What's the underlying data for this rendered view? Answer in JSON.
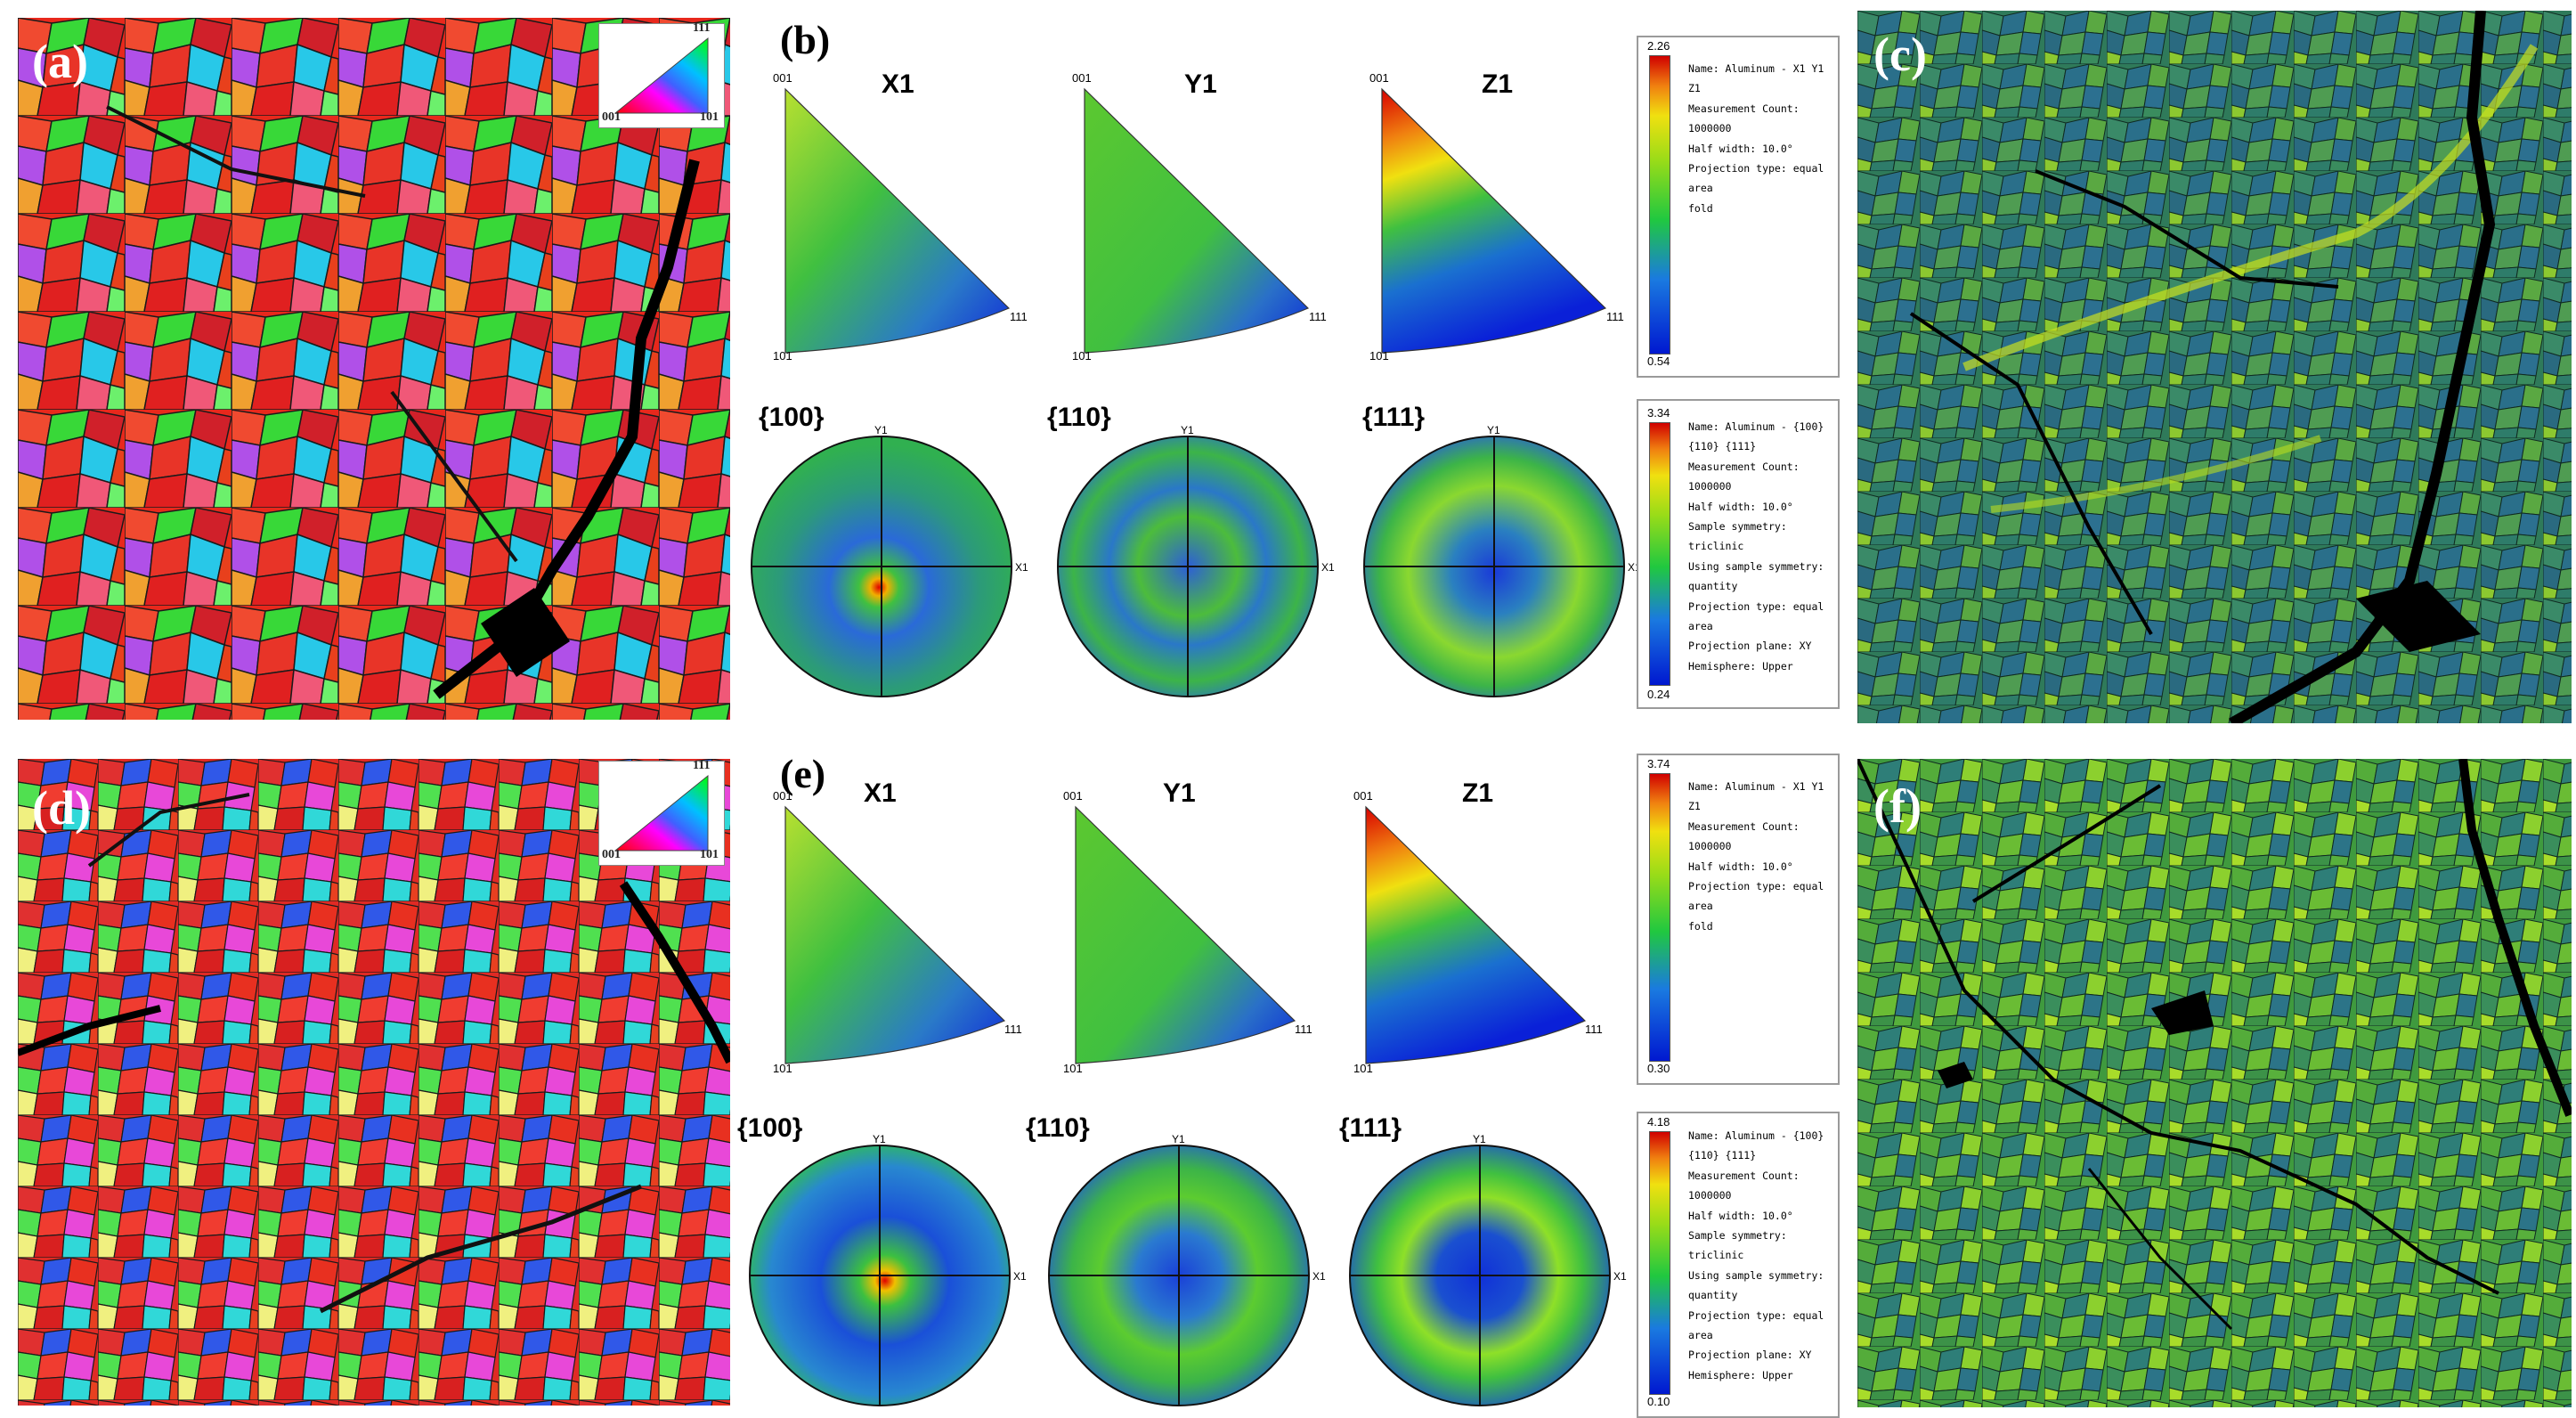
{
  "rows": [
    {
      "map_label": "(a)",
      "ipf_key": {
        "corner_001": "001",
        "corner_101": "101",
        "corner_111": "111"
      },
      "ipf_label": "(b)",
      "ipf_titles": [
        "X1",
        "Y1",
        "Z1"
      ],
      "triangle_corners": {
        "top": "001",
        "bottom": "101",
        "right": "111"
      },
      "ipf_legend": {
        "max": "2.26",
        "min": "0.54",
        "text": "Name: Aluminum - X1 Y1\nZ1\nMeasurement Count:\n1000000\nHalf width: 10.0°\nProjection type: equal\narea\nfold"
      },
      "pf_titles": [
        "{100}",
        "{110}",
        "{111}"
      ],
      "pf_axis": {
        "y": "Y1",
        "x": "X1"
      },
      "pf_legend": {
        "max": "3.34",
        "min": "0.24",
        "text": "Name: Aluminum - {100}\n{110} {111}\nMeasurement Count:\n1000000\nHalf width: 10.0°\nSample symmetry:\ntriclinic\nUsing sample symmetry:\nquantity\nProjection type: equal\narea\nProjection plane: XY\nHemisphere: Upper"
      },
      "kam_label": "(c)"
    },
    {
      "map_label": "(d)",
      "ipf_key": {
        "corner_001": "001",
        "corner_101": "101",
        "corner_111": "111"
      },
      "ipf_label": "(e)",
      "ipf_titles": [
        "X1",
        "Y1",
        "Z1"
      ],
      "triangle_corners": {
        "top": "001",
        "bottom": "101",
        "right": "111"
      },
      "ipf_legend": {
        "max": "3.74",
        "min": "0.30",
        "text": "Name: Aluminum - X1 Y1\nZ1\nMeasurement Count:\n1000000\nHalf width: 10.0°\nProjection type: equal\narea\nfold"
      },
      "pf_titles": [
        "{100}",
        "{110}",
        "{111}"
      ],
      "pf_axis": {
        "y": "Y1",
        "x": "X1"
      },
      "pf_legend": {
        "max": "4.18",
        "min": "0.10",
        "text": "Name: Aluminum - {100}\n{110} {111}\nMeasurement Count:\n1000000\nHalf width: 10.0°\nSample symmetry:\ntriclinic\nUsing sample symmetry:\nquantity\nProjection type: equal\narea\nProjection plane: XY\nHemisphere: Upper"
      },
      "kam_label": "(f)"
    }
  ],
  "colors": {
    "jet_low": "#0a2cd0",
    "jet_mid": "#2ec02e",
    "jet_high": "#e01010",
    "kam_base": "#2a7a52",
    "kam_high": "#b8e020"
  }
}
